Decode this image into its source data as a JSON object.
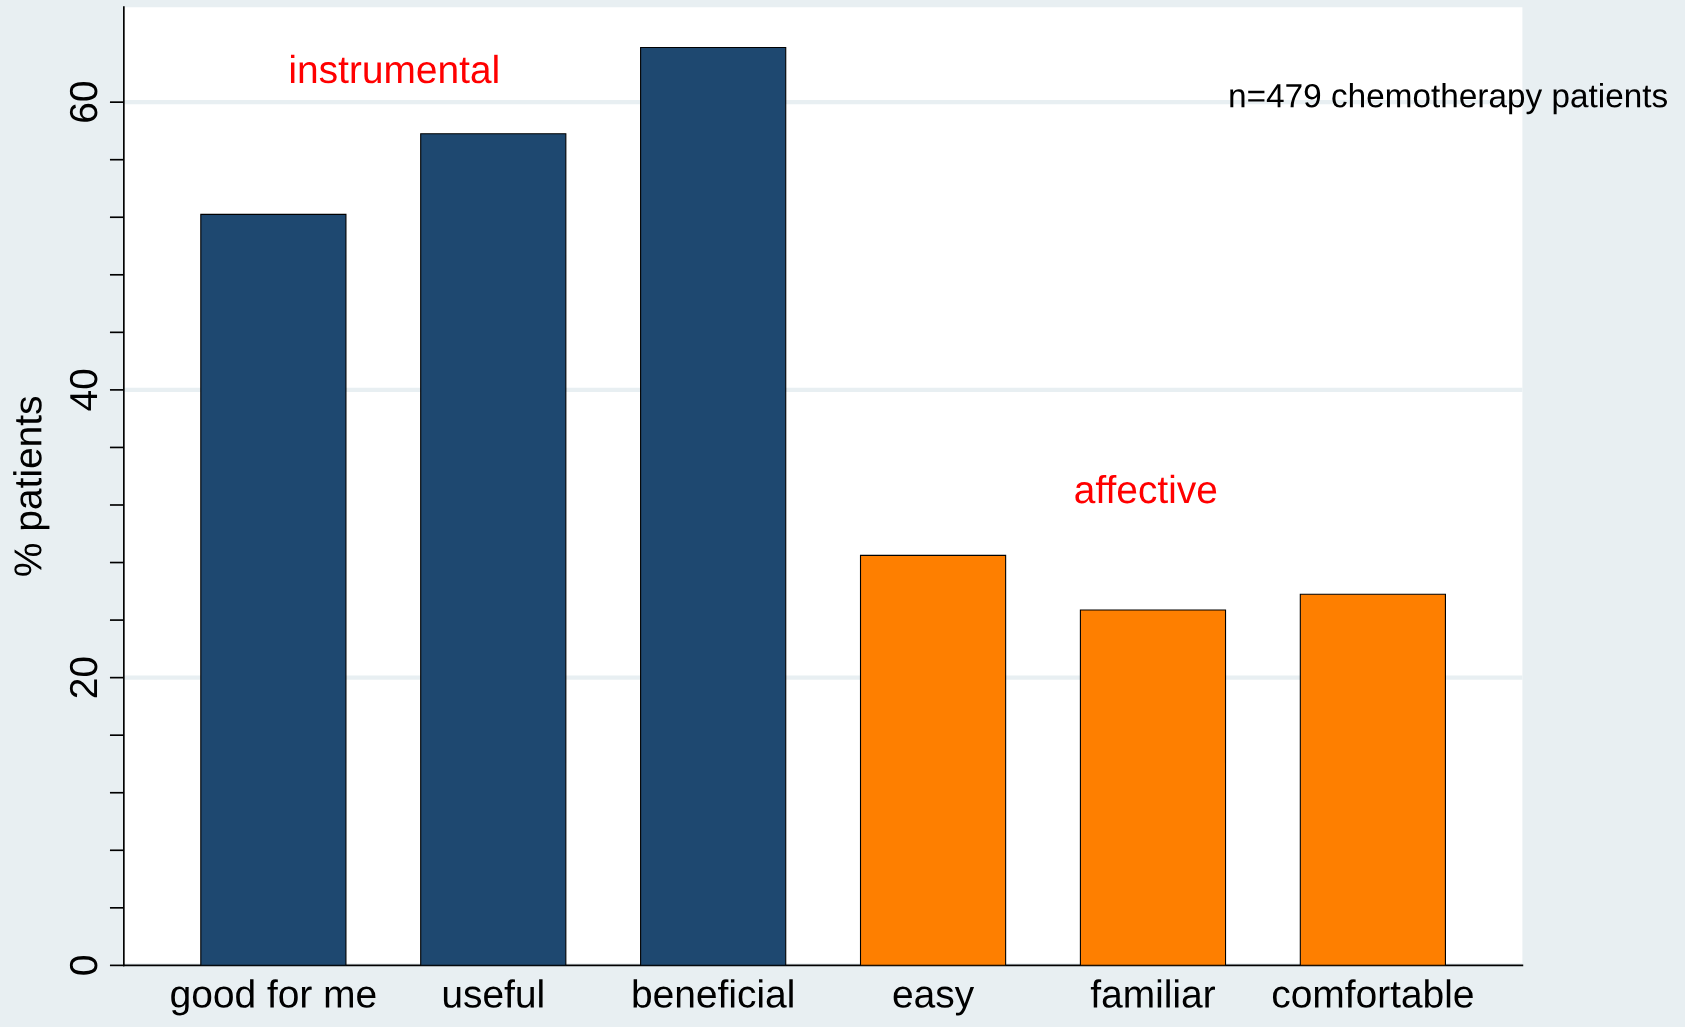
{
  "chart_data": {
    "type": "bar",
    "ylabel": "% patients",
    "categories": [
      "good for me",
      "useful",
      "beneficial",
      "easy",
      "familiar",
      "comfortable"
    ],
    "values": [
      52.2,
      57.8,
      63.8,
      28.5,
      24.7,
      25.8
    ],
    "colors": [
      "#1e4870",
      "#1e4870",
      "#1e4870",
      "#fe7f00",
      "#fe7f00",
      "#fe7f00"
    ],
    "ylim": [
      0,
      66.6
    ],
    "yticks": [
      0,
      {
        "value": 4,
        "label": null
      },
      {
        "value": 8,
        "label": null
      },
      {
        "value": 12,
        "label": null
      },
      {
        "value": 16,
        "label": null
      },
      20,
      {
        "value": 24,
        "label": null
      },
      {
        "value": 28,
        "label": null
      },
      {
        "value": 32,
        "label": null
      },
      {
        "value": 36,
        "label": null
      },
      40,
      {
        "value": 44,
        "label": null
      },
      {
        "value": 48,
        "label": null
      },
      {
        "value": 52,
        "label": null
      },
      {
        "value": 56,
        "label": null
      },
      60
    ],
    "grid": "y",
    "annotations": [
      "instrumental",
      "affective",
      "n=479 chemotherapy patients"
    ]
  }
}
